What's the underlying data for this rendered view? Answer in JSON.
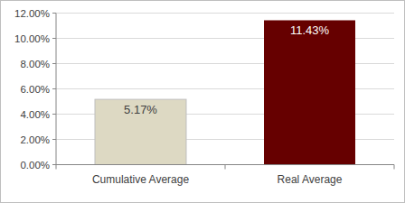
{
  "chart_data": {
    "type": "bar",
    "categories": [
      "Cumulative Average",
      "Real Average"
    ],
    "values": [
      5.17,
      11.43
    ],
    "value_labels": [
      "5.17%",
      "11.43%"
    ],
    "colors": [
      "#ddd9c3",
      "#660000"
    ],
    "ylim": [
      0,
      12
    ],
    "yticks": [
      {
        "value": 0,
        "label": "0.00%"
      },
      {
        "value": 2,
        "label": "2.00%"
      },
      {
        "value": 4,
        "label": "4.00%"
      },
      {
        "value": 6,
        "label": "6.00%"
      },
      {
        "value": 8,
        "label": "8.00%"
      },
      {
        "value": 10,
        "label": "10.00%"
      },
      {
        "value": 12,
        "label": "12.00%"
      }
    ],
    "grid": true,
    "data_labels": true
  }
}
